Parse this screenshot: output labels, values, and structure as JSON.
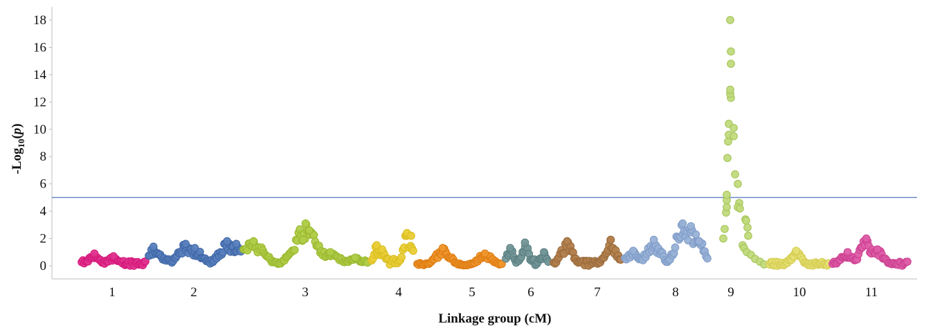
{
  "chart_data": {
    "type": "scatter",
    "title": "",
    "xlabel": "Linkage group (cM)",
    "ylabel_main": "-Log",
    "ylabel_sub": "10",
    "ylabel_paren": "(",
    "ylabel_var": "p",
    "ylabel_close": ")",
    "ylim": [
      -1,
      19
    ],
    "yticks": [
      0,
      2,
      4,
      6,
      8,
      10,
      12,
      14,
      16,
      18
    ],
    "threshold": 5,
    "threshold_color": "#6b86c7",
    "categories": [
      "1",
      "2",
      "3",
      "4",
      "5",
      "6",
      "7",
      "8",
      "9",
      "10",
      "11"
    ],
    "series": [
      {
        "group": "1",
        "color": "#d4197a",
        "fill": "#e0348e",
        "x": [
          0.0,
          0.3
        ],
        "peaks": [
          [
            0.2,
            0.9
          ],
          [
            0.5,
            0.7
          ]
        ],
        "base": 0.4
      },
      {
        "group": "2",
        "color": "#3f67a6",
        "fill": "#5a80bd",
        "x": [
          0.0,
          0.3
        ],
        "peaks": [
          [
            0.05,
            1.4
          ],
          [
            0.4,
            1.6
          ],
          [
            0.5,
            1.3
          ],
          [
            0.85,
            1.8
          ],
          [
            0.95,
            1.6
          ]
        ],
        "base": 0.5
      },
      {
        "group": "3",
        "color": "#9ab930",
        "fill": "#b1cd4a",
        "x": [
          0.0,
          0.3
        ],
        "peaks": [
          [
            0.08,
            1.8
          ],
          [
            0.5,
            3.1
          ],
          [
            0.53,
            2.6
          ],
          [
            0.48,
            1.9
          ],
          [
            0.7,
            1.0
          ],
          [
            0.9,
            0.6
          ]
        ],
        "base": 0.3
      },
      {
        "group": "4",
        "color": "#d9bd1d",
        "fill": "#eacf3a",
        "x": [
          0.0,
          0.3
        ],
        "peaks": [
          [
            0.12,
            1.5
          ],
          [
            0.25,
            1.2
          ],
          [
            0.85,
            2.4
          ],
          [
            0.95,
            2.2
          ]
        ],
        "base": 0.5
      },
      {
        "group": "5",
        "color": "#de7c10",
        "fill": "#ee962e",
        "x": [
          0.0,
          0.3
        ],
        "peaks": [
          [
            0.3,
            1.3
          ],
          [
            0.8,
            0.9
          ]
        ],
        "base": 0.2
      },
      {
        "group": "6",
        "color": "#5b7f80",
        "fill": "#739798",
        "x": [
          0.0,
          0.3
        ],
        "peaks": [
          [
            0.1,
            1.3
          ],
          [
            0.45,
            1.7
          ],
          [
            0.9,
            1.0
          ]
        ],
        "base": 0.5
      },
      {
        "group": "7",
        "color": "#9a6a3b",
        "fill": "#b3814f",
        "x": [
          0.0,
          0.3
        ],
        "peaks": [
          [
            0.2,
            1.8
          ],
          [
            0.85,
            1.9
          ]
        ],
        "base": 0.4
      },
      {
        "group": "8",
        "color": "#7e9bc7",
        "fill": "#98b1d6",
        "x": [
          0.0,
          0.3
        ],
        "peaks": [
          [
            0.1,
            1.1
          ],
          [
            0.35,
            1.9
          ],
          [
            0.7,
            3.1
          ],
          [
            0.8,
            2.9
          ],
          [
            0.9,
            1.8
          ]
        ],
        "base": 0.3
      },
      {
        "group": "9",
        "color": "#a5c559",
        "fill": "#c1da7c",
        "x": [
          0.0,
          0.3
        ],
        "peaks": [
          [
            0.5,
            18.0
          ]
        ],
        "base": 0.2
      },
      {
        "group": "10",
        "color": "#d3cc52",
        "fill": "#e6df72",
        "x": [
          0.0,
          0.3
        ],
        "peaks": [
          [
            0.45,
            1.1
          ]
        ],
        "base": 0.3
      },
      {
        "group": "11",
        "color": "#cc3f91",
        "fill": "#de5ea8",
        "x": [
          0.0,
          0.3
        ],
        "peaks": [
          [
            0.2,
            1.0
          ],
          [
            0.45,
            2.0
          ],
          [
            0.6,
            1.2
          ]
        ],
        "base": 0.3
      }
    ],
    "group9_points": [
      2.0,
      2.7,
      3.9,
      4.3,
      4.8,
      5.2,
      7.9,
      9.1,
      9.6,
      10.4,
      12.3,
      12.6,
      12.9,
      14.8,
      15.7,
      18.0,
      10.1,
      9.5,
      6.7,
      6.0,
      4.6,
      4.3,
      4.2,
      3.4,
      3.3,
      2.8,
      2.2,
      1.5,
      1.3,
      1.0,
      0.8,
      0.5,
      0.3,
      0.1
    ]
  }
}
